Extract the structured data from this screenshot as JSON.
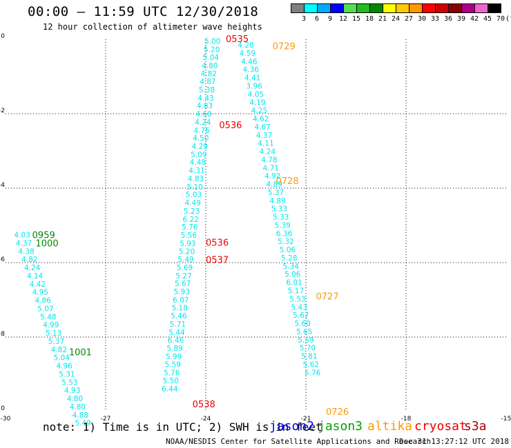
{
  "title": "00:00 – 11:59 UTC 12/30/2018",
  "subtitle": "12 hour collection of altimeter wave heights",
  "note": "note: 1) Time is in UTC; 2) SWH is in feet",
  "credit": "NOAA/NESDIS Center for Satellite Applications and Research",
  "timestamp": "Dec 31 13:27:12 UTC 2018",
  "satellites": [
    {
      "name": "jason2",
      "color": "#0000ee"
    },
    {
      "name": "jason3",
      "color": "#00a000"
    },
    {
      "name": "altika",
      "color": "#ff9900"
    },
    {
      "name": "cryosat",
      "color": "#ee0000"
    },
    {
      "name": "s3a",
      "color": "#aa0000"
    }
  ],
  "color_scale": {
    "labels": [
      "3",
      "6",
      "9",
      "12",
      "15",
      "18",
      "21",
      "24",
      "27",
      "30",
      "33",
      "36",
      "39",
      "42",
      "45",
      "70",
      "(ft)"
    ],
    "colors": [
      "#808080",
      "#00ffff",
      "#00aaff",
      "#0000ff",
      "#55dd55",
      "#22bb22",
      "#008800",
      "#ffff00",
      "#ffcc00",
      "#ff9900",
      "#ff0000",
      "#cc0000",
      "#880000",
      "#aa0088",
      "#ee66cc",
      "#000000"
    ]
  },
  "chart_data": {
    "type": "scatter",
    "xlim": [
      -30,
      -15
    ],
    "ylim": [
      -10,
      0
    ],
    "x_ticks": [
      "-30",
      "-27",
      "-24",
      "-21",
      "-18",
      "-15"
    ],
    "y_ticks": [
      "0",
      "-2",
      "-4",
      "-6",
      "-8",
      "-10"
    ],
    "x_tick_values": [
      -30,
      -27,
      -24,
      -21,
      -18,
      -15
    ],
    "y_tick_values": [
      0,
      -2,
      -4,
      -6,
      -8,
      -10
    ],
    "grid": true,
    "series": [
      {
        "color": "#00e5ee",
        "points": [
          {
            "x": -23.8,
            "y": -0.05,
            "label": "5.00"
          },
          {
            "x": -23.82,
            "y": -0.27,
            "label": "5.20"
          },
          {
            "x": -23.85,
            "y": -0.48,
            "label": "5.04"
          },
          {
            "x": -23.88,
            "y": -0.7,
            "label": "4.80"
          },
          {
            "x": -23.91,
            "y": -0.92,
            "label": "4.82"
          },
          {
            "x": -23.94,
            "y": -1.13,
            "label": "4.87"
          },
          {
            "x": -23.97,
            "y": -1.35,
            "label": "5.38"
          },
          {
            "x": -24.0,
            "y": -1.57,
            "label": "4.43"
          },
          {
            "x": -24.03,
            "y": -1.78,
            "label": "4.83"
          },
          {
            "x": -24.06,
            "y": -2.0,
            "label": "4.60"
          },
          {
            "x": -24.09,
            "y": -2.22,
            "label": "4.24"
          },
          {
            "x": -24.12,
            "y": -2.44,
            "label": "4.76"
          },
          {
            "x": -24.15,
            "y": -2.65,
            "label": "4.50"
          },
          {
            "x": -24.18,
            "y": -2.87,
            "label": "4.29"
          },
          {
            "x": -24.21,
            "y": -3.09,
            "label": "5.09"
          },
          {
            "x": -24.24,
            "y": -3.3,
            "label": "4.48"
          },
          {
            "x": -24.27,
            "y": -3.52,
            "label": "4.31"
          },
          {
            "x": -24.3,
            "y": -3.74,
            "label": "4.83"
          },
          {
            "x": -24.33,
            "y": -3.96,
            "label": "5.10"
          },
          {
            "x": -24.36,
            "y": -4.17,
            "label": "5.03"
          },
          {
            "x": -24.39,
            "y": -4.39,
            "label": "4.49"
          },
          {
            "x": -24.42,
            "y": -4.61,
            "label": "5.23"
          },
          {
            "x": -24.45,
            "y": -4.83,
            "label": "6.22"
          },
          {
            "x": -24.48,
            "y": -5.04,
            "label": "5.76"
          },
          {
            "x": -24.51,
            "y": -5.26,
            "label": "5.56"
          },
          {
            "x": -24.54,
            "y": -5.48,
            "label": "5.93"
          },
          {
            "x": -24.57,
            "y": -5.69,
            "label": "5.20"
          },
          {
            "x": -24.6,
            "y": -5.91,
            "label": "5.49"
          },
          {
            "x": -24.63,
            "y": -6.13,
            "label": "5.69"
          },
          {
            "x": -24.66,
            "y": -6.35,
            "label": "5.27"
          },
          {
            "x": -24.69,
            "y": -6.56,
            "label": "5.67"
          },
          {
            "x": -24.72,
            "y": -6.78,
            "label": "5.93"
          },
          {
            "x": -24.75,
            "y": -7.0,
            "label": "6.07"
          },
          {
            "x": -24.78,
            "y": -7.21,
            "label": "5.18"
          },
          {
            "x": -24.81,
            "y": -7.43,
            "label": "5.46"
          },
          {
            "x": -24.84,
            "y": -7.65,
            "label": "5.71"
          },
          {
            "x": -24.87,
            "y": -7.87,
            "label": "5.44"
          },
          {
            "x": -24.9,
            "y": -8.08,
            "label": "6.46"
          },
          {
            "x": -24.93,
            "y": -8.3,
            "label": "5.89"
          },
          {
            "x": -24.96,
            "y": -8.52,
            "label": "5.99"
          },
          {
            "x": -24.99,
            "y": -8.73,
            "label": "5.59"
          },
          {
            "x": -25.02,
            "y": -8.95,
            "label": "5.76"
          },
          {
            "x": -25.05,
            "y": -9.17,
            "label": "5.50"
          },
          {
            "x": -25.08,
            "y": -9.39,
            "label": "6.44"
          }
        ]
      },
      {
        "color": "#00e5ee",
        "points": [
          {
            "x": -22.8,
            "y": -0.15,
            "label": "4.28"
          },
          {
            "x": -22.75,
            "y": -0.37,
            "label": "4.59"
          },
          {
            "x": -22.7,
            "y": -0.59,
            "label": "4.46"
          },
          {
            "x": -22.65,
            "y": -0.81,
            "label": "4.36"
          },
          {
            "x": -22.6,
            "y": -1.03,
            "label": "4.41"
          },
          {
            "x": -22.55,
            "y": -1.25,
            "label": "3.96"
          },
          {
            "x": -22.5,
            "y": -1.47,
            "label": "4.05"
          },
          {
            "x": -22.45,
            "y": -1.69,
            "label": "4.19"
          },
          {
            "x": -22.4,
            "y": -1.91,
            "label": "4.25"
          },
          {
            "x": -22.35,
            "y": -2.13,
            "label": "4.62"
          },
          {
            "x": -22.3,
            "y": -2.35,
            "label": "4.67"
          },
          {
            "x": -22.25,
            "y": -2.57,
            "label": "4.37"
          },
          {
            "x": -22.2,
            "y": -2.79,
            "label": "4.11"
          },
          {
            "x": -22.15,
            "y": -3.01,
            "label": "4.24"
          },
          {
            "x": -22.1,
            "y": -3.23,
            "label": "4.78"
          },
          {
            "x": -22.05,
            "y": -3.45,
            "label": "4.71"
          },
          {
            "x": -22.0,
            "y": -3.67,
            "label": "4.92"
          },
          {
            "x": -21.95,
            "y": -3.89,
            "label": "4.89"
          },
          {
            "x": -21.9,
            "y": -4.11,
            "label": "5.37"
          },
          {
            "x": -21.85,
            "y": -4.33,
            "label": "4.89"
          },
          {
            "x": -21.8,
            "y": -4.55,
            "label": "5.33"
          },
          {
            "x": -21.75,
            "y": -4.77,
            "label": "5.33"
          },
          {
            "x": -21.7,
            "y": -4.99,
            "label": "5.39"
          },
          {
            "x": -21.65,
            "y": -5.21,
            "label": "6.36"
          },
          {
            "x": -21.6,
            "y": -5.43,
            "label": "5.32"
          },
          {
            "x": -21.55,
            "y": -5.65,
            "label": "5.06"
          },
          {
            "x": -21.5,
            "y": -5.87,
            "label": "5.28"
          },
          {
            "x": -21.45,
            "y": -6.09,
            "label": "5.34"
          },
          {
            "x": -21.4,
            "y": -6.31,
            "label": "5.06"
          },
          {
            "x": -21.35,
            "y": -6.53,
            "label": "6.01"
          },
          {
            "x": -21.3,
            "y": -6.75,
            "label": "5.17"
          },
          {
            "x": -21.25,
            "y": -6.97,
            "label": "5.53"
          },
          {
            "x": -21.2,
            "y": -7.19,
            "label": "5.43"
          },
          {
            "x": -21.15,
            "y": -7.41,
            "label": "5.67"
          },
          {
            "x": -21.1,
            "y": -7.63,
            "label": "5.60"
          },
          {
            "x": -21.05,
            "y": -7.85,
            "label": "5.65"
          },
          {
            "x": -21.0,
            "y": -8.07,
            "label": "5.59"
          },
          {
            "x": -20.95,
            "y": -8.29,
            "label": "5.70"
          },
          {
            "x": -20.9,
            "y": -8.51,
            "label": "5.81"
          },
          {
            "x": -20.85,
            "y": -8.73,
            "label": "5.62"
          },
          {
            "x": -20.8,
            "y": -8.95,
            "label": "5.76"
          }
        ]
      },
      {
        "color": "#00e5ee",
        "points": [
          {
            "x": -29.5,
            "y": -5.25,
            "label": "4.03"
          },
          {
            "x": -29.45,
            "y": -5.47,
            "label": "4.37"
          },
          {
            "x": -29.38,
            "y": -5.69,
            "label": "4.38"
          },
          {
            "x": -29.28,
            "y": -5.91,
            "label": "4.82"
          },
          {
            "x": -29.2,
            "y": -6.13,
            "label": "4.24"
          },
          {
            "x": -29.12,
            "y": -6.35,
            "label": "4.14"
          },
          {
            "x": -29.04,
            "y": -6.57,
            "label": "4.42"
          },
          {
            "x": -28.96,
            "y": -6.79,
            "label": "4.95"
          },
          {
            "x": -28.88,
            "y": -7.01,
            "label": "4.86"
          },
          {
            "x": -28.8,
            "y": -7.23,
            "label": "5.07"
          },
          {
            "x": -28.72,
            "y": -7.45,
            "label": "5.48"
          },
          {
            "x": -28.64,
            "y": -7.67,
            "label": "4.99"
          },
          {
            "x": -28.56,
            "y": -7.89,
            "label": "5.13"
          },
          {
            "x": -28.48,
            "y": -8.11,
            "label": "5.37"
          },
          {
            "x": -28.4,
            "y": -8.33,
            "label": "4.82"
          },
          {
            "x": -28.32,
            "y": -8.55,
            "label": "5.04"
          },
          {
            "x": -28.24,
            "y": -8.77,
            "label": "4.96"
          },
          {
            "x": -28.16,
            "y": -8.99,
            "label": "5.31"
          },
          {
            "x": -28.08,
            "y": -9.21,
            "label": "5.53"
          },
          {
            "x": -28.0,
            "y": -9.43,
            "label": "4.93"
          },
          {
            "x": -27.92,
            "y": -9.65,
            "label": "4.80"
          },
          {
            "x": -27.84,
            "y": -9.87,
            "label": "4.80"
          },
          {
            "x": -27.76,
            "y": -10.09,
            "label": "4.88"
          },
          {
            "x": -27.68,
            "y": -10.31,
            "label": "5.49"
          }
        ]
      }
    ],
    "annotations": [
      {
        "x": -23.4,
        "y": 0.02,
        "text": "0535",
        "color": "#ee0000"
      },
      {
        "x": -22.0,
        "y": -0.18,
        "text": "0729",
        "color": "#ff9900"
      },
      {
        "x": -23.6,
        "y": -2.3,
        "text": "0536",
        "color": "#ee0000"
      },
      {
        "x": -21.9,
        "y": -3.8,
        "text": "0728",
        "color": "#ff9900"
      },
      {
        "x": -24.0,
        "y": -5.45,
        "text": "0536",
        "color": "#ee0000"
      },
      {
        "x": -24.0,
        "y": -5.92,
        "text": "0537",
        "color": "#ee0000"
      },
      {
        "x": -20.7,
        "y": -6.9,
        "text": "0727",
        "color": "#ff9900"
      },
      {
        "x": -24.4,
        "y": -9.8,
        "text": "0538",
        "color": "#ee0000"
      },
      {
        "x": -20.4,
        "y": -10.0,
        "text": "0726",
        "color": "#ff9900"
      },
      {
        "x": -29.2,
        "y": -5.25,
        "text": "0959",
        "color": "#008800"
      },
      {
        "x": -29.1,
        "y": -5.47,
        "text": "1000",
        "color": "#008800"
      },
      {
        "x": -28.1,
        "y": -8.4,
        "text": "1001",
        "color": "#008800"
      }
    ]
  }
}
